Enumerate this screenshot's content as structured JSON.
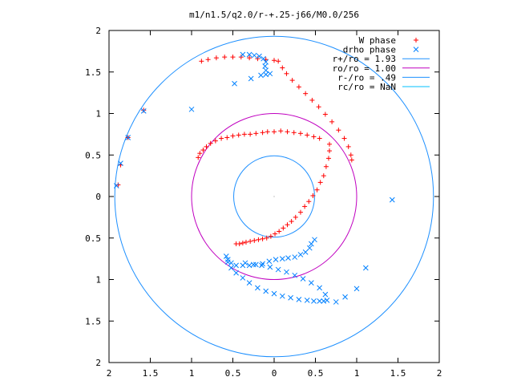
{
  "chart_data": {
    "type": "scatter",
    "title": "m1/n1.5/q2.0/r-+.25-j66/M0.0/256",
    "xlim": [
      -2,
      2
    ],
    "ylim": [
      -2,
      2
    ],
    "x_ticks": [
      -2,
      -1.5,
      -1,
      -0.5,
      0,
      0.5,
      1,
      1.5,
      2
    ],
    "x_tick_labels": [
      "2",
      "1.5",
      "1",
      "0.5",
      "0",
      "0.5",
      "1",
      "1.5",
      "2"
    ],
    "y_ticks": [
      2,
      1.5,
      1,
      0.5,
      0,
      -0.5,
      -1,
      -1.5,
      -2
    ],
    "y_tick_labels": [
      "2",
      "1.5",
      "1",
      "0.5",
      "0",
      "0.5",
      "1",
      "1.5",
      "2"
    ],
    "grid": false,
    "legend_position": "top-right",
    "legend": [
      {
        "label": "W phase",
        "marker": "plus",
        "color": "#ff0000"
      },
      {
        "label": "drho phase",
        "marker": "cross",
        "color": "#0080ff"
      },
      {
        "label": "r+/ro = 1.93",
        "marker": "line",
        "color": "#1e90ff"
      },
      {
        "label": "ro/ro = 1.00",
        "marker": "line",
        "color": "#c000c0"
      },
      {
        "label": "r-/ro = .49",
        "marker": "line",
        "color": "#1e90ff"
      },
      {
        "label": "rc/ro = NaN",
        "marker": "line",
        "color": "#00c0ff"
      }
    ],
    "circles": [
      {
        "name": "r+/ro",
        "r": 1.93,
        "color": "#1e90ff"
      },
      {
        "name": "ro/ro",
        "r": 1.0,
        "color": "#c000c0"
      },
      {
        "name": "r-/ro",
        "r": 0.49,
        "color": "#1e90ff"
      }
    ],
    "series": [
      {
        "name": "W phase",
        "marker": "plus",
        "color": "#ff0000",
        "points": [
          [
            -1.89,
            0.14
          ],
          [
            -1.86,
            0.38
          ],
          [
            -1.77,
            0.71
          ],
          [
            -1.58,
            1.04
          ],
          [
            -0.88,
            1.63
          ],
          [
            -0.8,
            1.65
          ],
          [
            -0.7,
            1.67
          ],
          [
            -0.6,
            1.68
          ],
          [
            -0.5,
            1.68
          ],
          [
            -0.4,
            1.68
          ],
          [
            -0.3,
            1.67
          ],
          [
            -0.2,
            1.66
          ],
          [
            -0.1,
            1.65
          ],
          [
            0.0,
            1.64
          ],
          [
            0.05,
            1.63
          ],
          [
            0.1,
            1.55
          ],
          [
            0.15,
            1.48
          ],
          [
            0.22,
            1.4
          ],
          [
            0.3,
            1.32
          ],
          [
            0.38,
            1.24
          ],
          [
            0.46,
            1.16
          ],
          [
            0.54,
            1.08
          ],
          [
            0.62,
            0.99
          ],
          [
            0.7,
            0.9
          ],
          [
            0.78,
            0.8
          ],
          [
            0.85,
            0.7
          ],
          [
            0.9,
            0.6
          ],
          [
            0.93,
            0.5
          ],
          [
            0.94,
            0.44
          ],
          [
            -0.92,
            0.47
          ],
          [
            -0.9,
            0.52
          ],
          [
            -0.86,
            0.56
          ],
          [
            -0.82,
            0.6
          ],
          [
            -0.77,
            0.64
          ],
          [
            -0.71,
            0.67
          ],
          [
            -0.64,
            0.7
          ],
          [
            -0.57,
            0.71
          ],
          [
            -0.5,
            0.73
          ],
          [
            -0.43,
            0.74
          ],
          [
            -0.36,
            0.75
          ],
          [
            -0.29,
            0.75
          ],
          [
            -0.22,
            0.76
          ],
          [
            -0.14,
            0.77
          ],
          [
            -0.08,
            0.78
          ],
          [
            0.0,
            0.78
          ],
          [
            0.08,
            0.79
          ],
          [
            0.16,
            0.78
          ],
          [
            0.24,
            0.77
          ],
          [
            0.32,
            0.76
          ],
          [
            0.4,
            0.74
          ],
          [
            0.48,
            0.72
          ],
          [
            0.55,
            0.7
          ],
          [
            0.67,
            0.63
          ],
          [
            0.67,
            0.55
          ],
          [
            0.66,
            0.46
          ],
          [
            0.63,
            0.36
          ],
          [
            0.6,
            0.25
          ],
          [
            0.56,
            0.17
          ],
          [
            0.52,
            0.08
          ],
          [
            0.47,
            0.01
          ],
          [
            0.42,
            -0.06
          ],
          [
            0.37,
            -0.12
          ],
          [
            0.32,
            -0.19
          ],
          [
            0.26,
            -0.25
          ],
          [
            0.21,
            -0.3
          ],
          [
            0.16,
            -0.34
          ],
          [
            0.11,
            -0.38
          ],
          [
            0.06,
            -0.42
          ],
          [
            0.01,
            -0.45
          ],
          [
            -0.04,
            -0.48
          ],
          [
            -0.09,
            -0.5
          ],
          [
            -0.14,
            -0.51
          ],
          [
            -0.19,
            -0.52
          ],
          [
            -0.24,
            -0.53
          ],
          [
            -0.29,
            -0.54
          ],
          [
            -0.34,
            -0.55
          ],
          [
            -0.38,
            -0.56
          ],
          [
            -0.42,
            -0.57
          ],
          [
            -0.46,
            -0.57
          ]
        ]
      },
      {
        "name": "drho phase",
        "marker": "cross",
        "color": "#0080ff",
        "points": [
          [
            -1.91,
            0.13
          ],
          [
            -1.86,
            0.4
          ],
          [
            -1.77,
            0.71
          ],
          [
            -1.58,
            1.03
          ],
          [
            1.43,
            -0.04
          ],
          [
            1.11,
            -0.86
          ],
          [
            1.0,
            -1.11
          ],
          [
            0.86,
            -1.21
          ],
          [
            0.75,
            -1.27
          ],
          [
            -1.0,
            1.05
          ],
          [
            -0.48,
            1.36
          ],
          [
            -0.28,
            1.42
          ],
          [
            -0.16,
            1.46
          ],
          [
            -0.1,
            1.47
          ],
          [
            -0.05,
            1.48
          ],
          [
            -0.1,
            1.52
          ],
          [
            -0.11,
            1.57
          ],
          [
            -0.1,
            1.62
          ],
          [
            -0.13,
            1.66
          ],
          [
            -0.18,
            1.69
          ],
          [
            -0.24,
            1.7
          ],
          [
            -0.3,
            1.71
          ],
          [
            -0.38,
            1.71
          ],
          [
            0.49,
            -0.52
          ],
          [
            0.45,
            -0.57
          ],
          [
            0.43,
            -0.62
          ],
          [
            0.38,
            -0.67
          ],
          [
            0.32,
            -0.7
          ],
          [
            0.25,
            -0.73
          ],
          [
            0.17,
            -0.74
          ],
          [
            0.1,
            -0.75
          ],
          [
            0.02,
            -0.76
          ],
          [
            -0.06,
            -0.78
          ],
          [
            -0.14,
            -0.81
          ],
          [
            -0.22,
            -0.82
          ],
          [
            -0.3,
            -0.83
          ],
          [
            -0.38,
            -0.83
          ],
          [
            -0.46,
            -0.83
          ],
          [
            -0.52,
            -0.8
          ],
          [
            -0.56,
            -0.76
          ],
          [
            -0.58,
            -0.72
          ],
          [
            -0.56,
            -0.79
          ],
          [
            -0.52,
            -0.86
          ],
          [
            -0.46,
            -0.92
          ],
          [
            -0.38,
            -0.98
          ],
          [
            -0.3,
            -1.04
          ],
          [
            -0.2,
            -1.1
          ],
          [
            -0.1,
            -1.14
          ],
          [
            0.0,
            -1.17
          ],
          [
            0.1,
            -1.2
          ],
          [
            0.2,
            -1.22
          ],
          [
            0.3,
            -1.24
          ],
          [
            0.4,
            -1.25
          ],
          [
            0.48,
            -1.26
          ],
          [
            0.55,
            -1.26
          ],
          [
            0.6,
            -1.26
          ],
          [
            0.64,
            -1.25
          ],
          [
            0.62,
            -1.18
          ],
          [
            0.55,
            -1.1
          ],
          [
            0.45,
            -1.04
          ],
          [
            0.35,
            -0.99
          ],
          [
            0.25,
            -0.95
          ],
          [
            0.15,
            -0.91
          ],
          [
            0.05,
            -0.88
          ],
          [
            -0.05,
            -0.85
          ],
          [
            -0.15,
            -0.83
          ],
          [
            -0.25,
            -0.82
          ],
          [
            -0.35,
            -0.8
          ]
        ]
      }
    ]
  }
}
